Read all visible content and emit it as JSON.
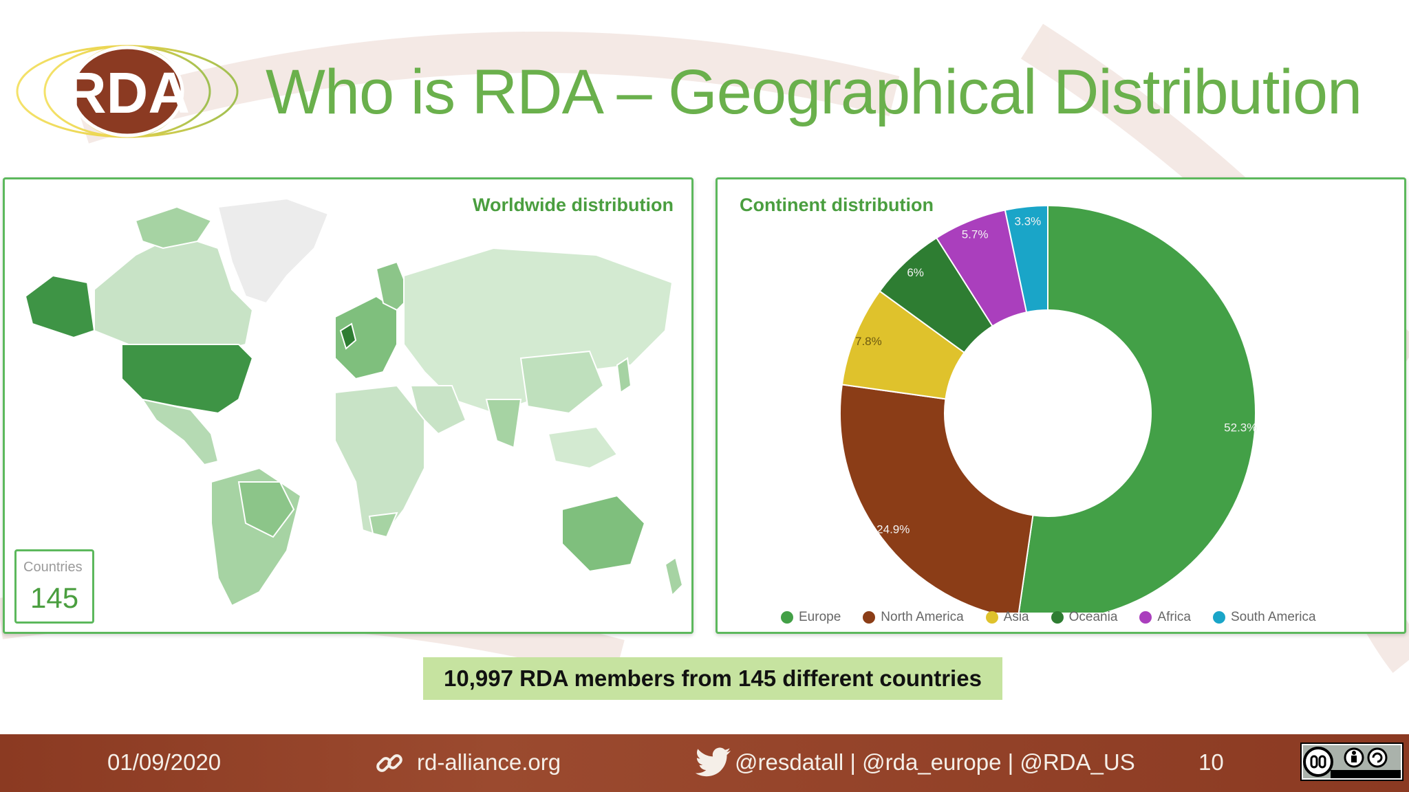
{
  "title": "Who is RDA – Geographical Distribution",
  "logo_text": "RDA",
  "map_panel": {
    "title": "Worldwide distribution",
    "countries_label": "Countries",
    "countries_value": "145"
  },
  "donut_panel": {
    "title": "Continent distribution"
  },
  "chart_data": {
    "type": "pie",
    "donut": true,
    "title": "Continent distribution",
    "categories": [
      "Europe",
      "North America",
      "Asia",
      "Oceania",
      "Africa",
      "South America"
    ],
    "values": [
      52.3,
      24.9,
      7.8,
      6,
      5.7,
      3.3
    ],
    "labels": [
      "52.3%",
      "24.9%",
      "7.8%",
      "6%",
      "5.7%",
      "3.3%"
    ],
    "colors": [
      "#43a047",
      "#8b3d17",
      "#dfc22c",
      "#2e7d32",
      "#aa3fbd",
      "#1aa5c8"
    ],
    "legend_position": "bottom"
  },
  "summary": "10,997 RDA members from 145 different countries",
  "footer": {
    "date": "01/09/2020",
    "site": "rd-alliance.org",
    "handles": "@resdatall | @rda_europe | @RDA_US",
    "page": "10"
  }
}
